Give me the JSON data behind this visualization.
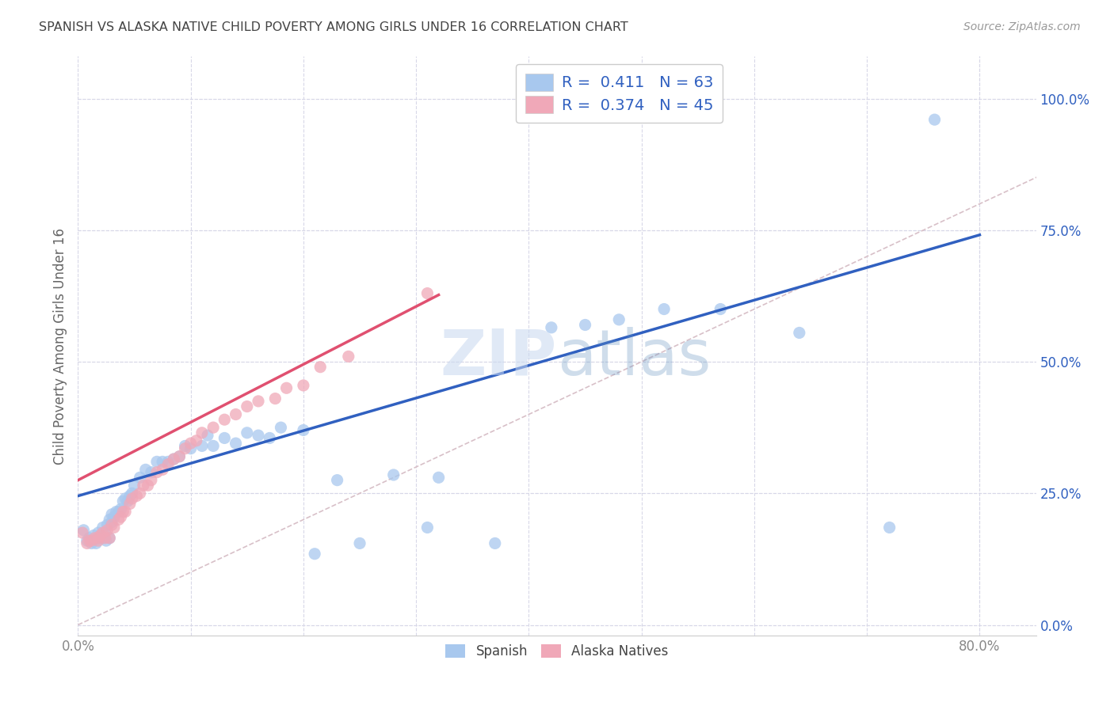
{
  "title": "SPANISH VS ALASKA NATIVE CHILD POVERTY AMONG GIRLS UNDER 16 CORRELATION CHART",
  "source": "Source: ZipAtlas.com",
  "ylabel": "Child Poverty Among Girls Under 16",
  "xlim": [
    0.0,
    0.85
  ],
  "ylim": [
    -0.02,
    1.08
  ],
  "blue_color": "#A8C8EE",
  "pink_color": "#F0A8B8",
  "blue_line_color": "#3060C0",
  "pink_line_color": "#E05070",
  "diag_line_color": "#D8C0C8",
  "watermark_color": "#C8D8F0",
  "background_color": "#FFFFFF",
  "grid_color": "#D8D8E8",
  "blue_intercept": 0.245,
  "blue_slope": 0.62,
  "pink_intercept": 0.275,
  "pink_slope": 1.1,
  "pink_line_xmax": 0.32,
  "spanish_x": [
    0.005,
    0.008,
    0.01,
    0.012,
    0.014,
    0.016,
    0.018,
    0.018,
    0.02,
    0.022,
    0.022,
    0.024,
    0.025,
    0.026,
    0.028,
    0.028,
    0.03,
    0.03,
    0.032,
    0.034,
    0.036,
    0.038,
    0.04,
    0.042,
    0.044,
    0.046,
    0.048,
    0.05,
    0.055,
    0.06,
    0.065,
    0.07,
    0.075,
    0.08,
    0.085,
    0.09,
    0.095,
    0.1,
    0.11,
    0.115,
    0.12,
    0.13,
    0.14,
    0.15,
    0.16,
    0.17,
    0.18,
    0.2,
    0.21,
    0.23,
    0.25,
    0.28,
    0.31,
    0.32,
    0.37,
    0.42,
    0.45,
    0.48,
    0.52,
    0.57,
    0.64,
    0.72,
    0.76
  ],
  "spanish_y": [
    0.18,
    0.16,
    0.165,
    0.155,
    0.17,
    0.155,
    0.165,
    0.175,
    0.17,
    0.165,
    0.185,
    0.175,
    0.16,
    0.19,
    0.165,
    0.2,
    0.21,
    0.195,
    0.205,
    0.215,
    0.215,
    0.22,
    0.235,
    0.24,
    0.235,
    0.245,
    0.25,
    0.265,
    0.28,
    0.295,
    0.29,
    0.31,
    0.31,
    0.31,
    0.315,
    0.32,
    0.34,
    0.335,
    0.34,
    0.36,
    0.34,
    0.355,
    0.345,
    0.365,
    0.36,
    0.355,
    0.375,
    0.37,
    0.135,
    0.275,
    0.155,
    0.285,
    0.185,
    0.28,
    0.155,
    0.565,
    0.57,
    0.58,
    0.6,
    0.6,
    0.555,
    0.185,
    0.96
  ],
  "alaska_x": [
    0.004,
    0.008,
    0.01,
    0.012,
    0.015,
    0.018,
    0.018,
    0.02,
    0.022,
    0.024,
    0.026,
    0.028,
    0.03,
    0.032,
    0.036,
    0.038,
    0.04,
    0.042,
    0.046,
    0.048,
    0.052,
    0.055,
    0.058,
    0.062,
    0.065,
    0.07,
    0.075,
    0.08,
    0.085,
    0.09,
    0.095,
    0.1,
    0.105,
    0.11,
    0.12,
    0.13,
    0.14,
    0.15,
    0.16,
    0.175,
    0.185,
    0.2,
    0.215,
    0.24,
    0.31
  ],
  "alaska_y": [
    0.175,
    0.155,
    0.16,
    0.16,
    0.165,
    0.16,
    0.165,
    0.17,
    0.175,
    0.165,
    0.18,
    0.165,
    0.19,
    0.185,
    0.2,
    0.205,
    0.215,
    0.215,
    0.23,
    0.24,
    0.245,
    0.25,
    0.265,
    0.265,
    0.275,
    0.29,
    0.295,
    0.305,
    0.315,
    0.32,
    0.335,
    0.345,
    0.35,
    0.365,
    0.375,
    0.39,
    0.4,
    0.415,
    0.425,
    0.43,
    0.45,
    0.455,
    0.49,
    0.51,
    0.63
  ]
}
